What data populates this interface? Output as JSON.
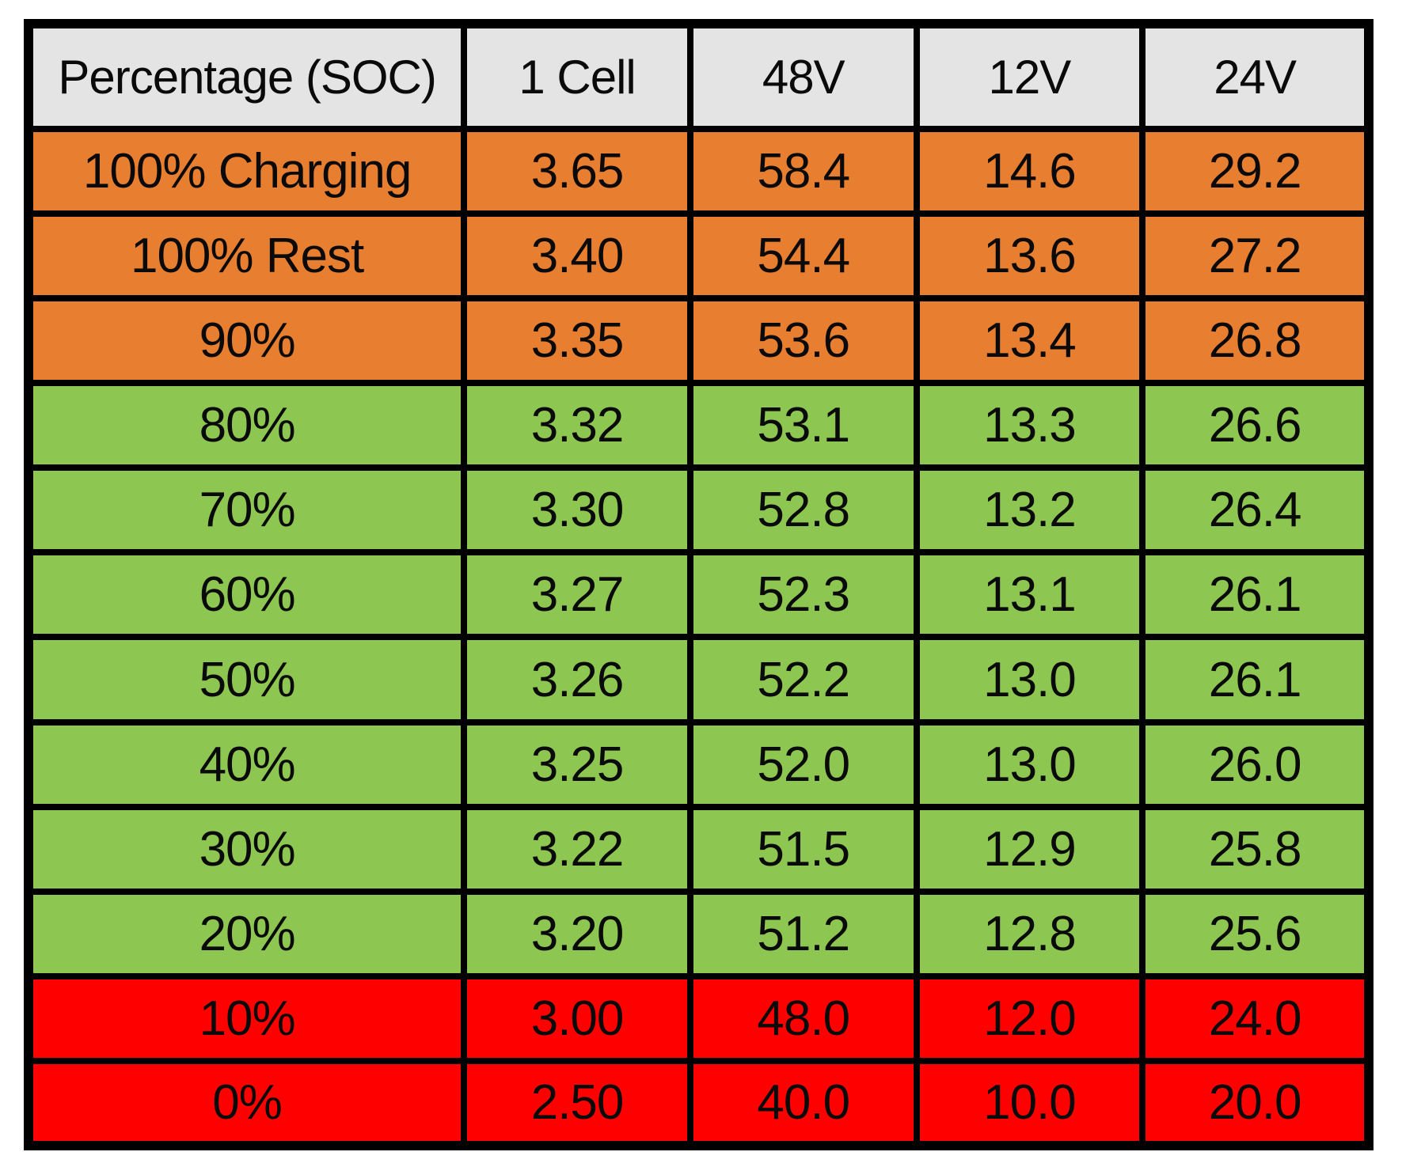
{
  "table": {
    "columns": [
      "Percentage (SOC)",
      "1 Cell",
      "48V",
      "12V",
      "24V"
    ],
    "rows": [
      {
        "band": "orange",
        "cells": [
          "100% Charging",
          "3.65",
          "58.4",
          "14.6",
          "29.2"
        ]
      },
      {
        "band": "orange",
        "cells": [
          "100% Rest",
          "3.40",
          "54.4",
          "13.6",
          "27.2"
        ]
      },
      {
        "band": "orange",
        "cells": [
          "90%",
          "3.35",
          "53.6",
          "13.4",
          "26.8"
        ]
      },
      {
        "band": "green",
        "cells": [
          "80%",
          "3.32",
          "53.1",
          "13.3",
          "26.6"
        ]
      },
      {
        "band": "green",
        "cells": [
          "70%",
          "3.30",
          "52.8",
          "13.2",
          "26.4"
        ]
      },
      {
        "band": "green",
        "cells": [
          "60%",
          "3.27",
          "52.3",
          "13.1",
          "26.1"
        ]
      },
      {
        "band": "green",
        "cells": [
          "50%",
          "3.26",
          "52.2",
          "13.0",
          "26.1"
        ]
      },
      {
        "band": "green",
        "cells": [
          "40%",
          "3.25",
          "52.0",
          "13.0",
          "26.0"
        ]
      },
      {
        "band": "green",
        "cells": [
          "30%",
          "3.22",
          "51.5",
          "12.9",
          "25.8"
        ]
      },
      {
        "band": "green",
        "cells": [
          "20%",
          "3.20",
          "51.2",
          "12.8",
          "25.6"
        ]
      },
      {
        "band": "red",
        "cells": [
          "10%",
          "3.00",
          "48.0",
          "12.0",
          "24.0"
        ]
      },
      {
        "band": "red",
        "cells": [
          "0%",
          "2.50",
          "40.0",
          "10.0",
          "20.0"
        ]
      }
    ],
    "colors": {
      "header_bg": "#E5E4E4",
      "orange": "#E87E2F",
      "green": "#8DC650",
      "red": "#FF0000",
      "border": "#000000",
      "text": "#0A0A0A"
    }
  },
  "chart_data": {
    "type": "table",
    "title": "",
    "columns": [
      "Percentage (SOC)",
      "1 Cell",
      "48V",
      "12V",
      "24V"
    ],
    "rows": [
      [
        "100% Charging",
        3.65,
        58.4,
        14.6,
        29.2
      ],
      [
        "100% Rest",
        3.4,
        54.4,
        13.6,
        27.2
      ],
      [
        "90%",
        3.35,
        53.6,
        13.4,
        26.8
      ],
      [
        "80%",
        3.32,
        53.1,
        13.3,
        26.6
      ],
      [
        "70%",
        3.3,
        52.8,
        13.2,
        26.4
      ],
      [
        "60%",
        3.27,
        52.3,
        13.1,
        26.1
      ],
      [
        "50%",
        3.26,
        52.2,
        13.0,
        26.1
      ],
      [
        "40%",
        3.25,
        52.0,
        13.0,
        26.0
      ],
      [
        "30%",
        3.22,
        51.5,
        12.9,
        25.8
      ],
      [
        "20%",
        3.2,
        51.2,
        12.8,
        25.6
      ],
      [
        "10%",
        3.0,
        48.0,
        12.0,
        24.0
      ],
      [
        "0%",
        2.5,
        40.0,
        10.0,
        20.0
      ]
    ],
    "row_bands": [
      "orange",
      "orange",
      "orange",
      "green",
      "green",
      "green",
      "green",
      "green",
      "green",
      "green",
      "red",
      "red"
    ]
  }
}
